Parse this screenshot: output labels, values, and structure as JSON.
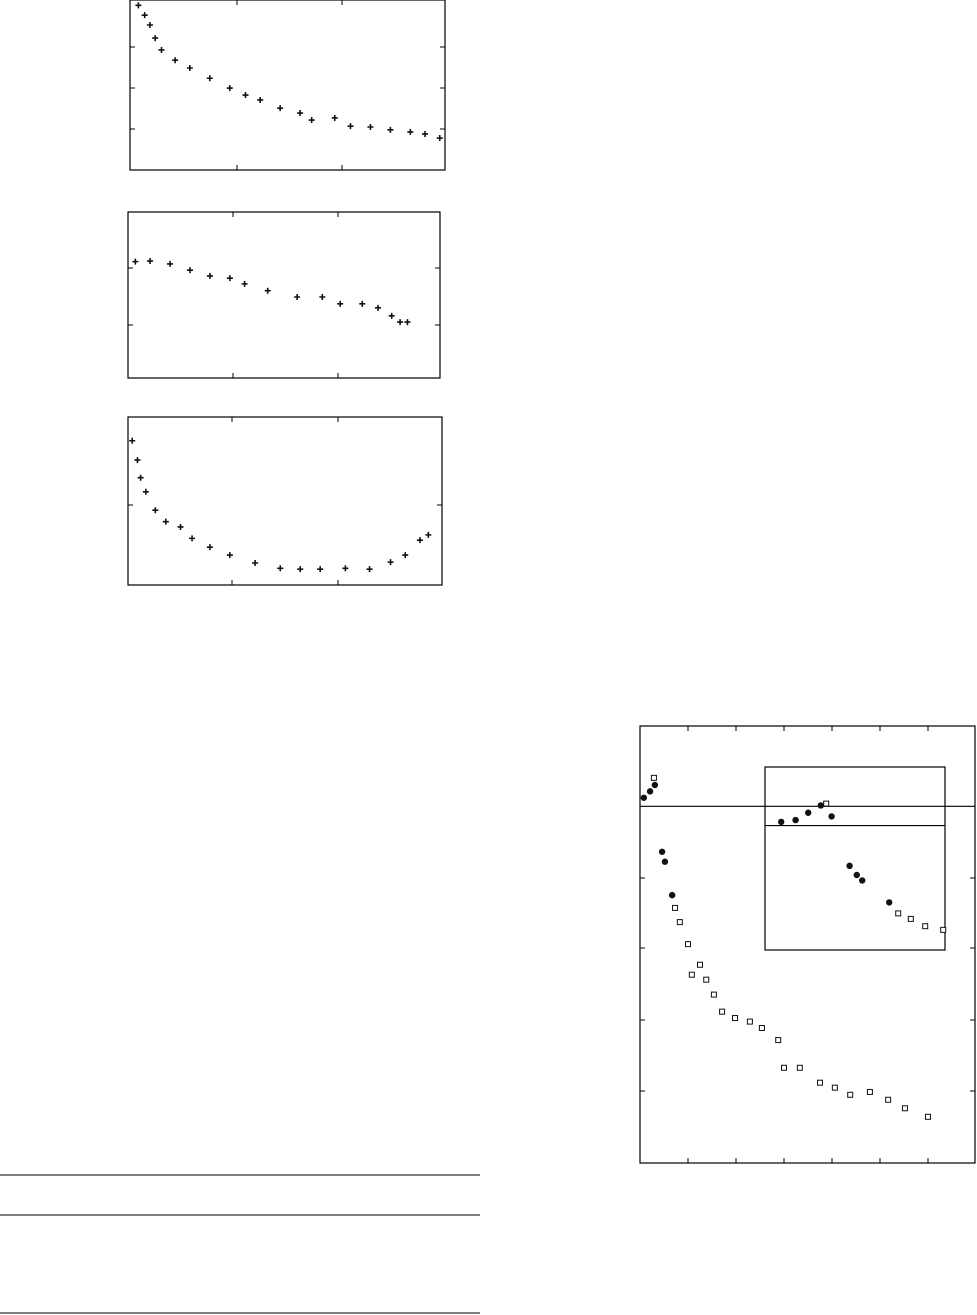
{
  "chart_data": [
    {
      "type": "scatter",
      "marker": "plus",
      "color": "#111",
      "x": [
        0.08,
        0.14,
        0.19,
        0.24,
        0.3,
        0.43,
        0.57,
        0.76,
        0.95,
        1.1,
        1.24,
        1.43,
        1.62,
        1.73,
        1.95,
        2.1,
        2.29,
        2.48,
        2.67,
        2.81,
        2.95
      ],
      "values": [
        4.02,
        3.78,
        3.54,
        3.22,
        2.93,
        2.68,
        2.49,
        2.24,
        2.0,
        1.83,
        1.71,
        1.51,
        1.39,
        1.22,
        1.27,
        1.07,
        1.05,
        0.98,
        0.93,
        0.88,
        0.78
      ],
      "xlim": [
        0,
        3
      ],
      "ylim": [
        0,
        4.15
      ]
    },
    {
      "type": "scatter",
      "marker": "plus",
      "color": "#111",
      "x": [
        0.07,
        0.21,
        0.4,
        0.59,
        0.78,
        0.97,
        1.11,
        1.33,
        1.61,
        1.85,
        2.02,
        2.23,
        2.38,
        2.51,
        2.59,
        2.66
      ],
      "values": [
        2.04,
        2.05,
        2.0,
        1.89,
        1.79,
        1.75,
        1.65,
        1.53,
        1.42,
        1.42,
        1.3,
        1.3,
        1.23,
        1.09,
        0.98,
        0.98
      ],
      "xlim": [
        0,
        2.97
      ],
      "ylim": [
        0,
        2.91
      ]
    },
    {
      "type": "scatter",
      "marker": "plus",
      "color": "#111",
      "x": [
        0.04,
        0.09,
        0.12,
        0.17,
        0.26,
        0.36,
        0.5,
        0.61,
        0.78,
        0.97,
        1.21,
        1.45,
        1.64,
        1.83,
        2.07,
        2.3,
        2.5,
        2.64,
        2.78,
        2.86
      ],
      "values": [
        1.64,
        1.42,
        1.22,
        1.06,
        0.85,
        0.72,
        0.66,
        0.53,
        0.43,
        0.34,
        0.25,
        0.19,
        0.18,
        0.18,
        0.19,
        0.18,
        0.26,
        0.34,
        0.51,
        0.57
      ],
      "xlim": [
        0,
        2.99
      ],
      "ylim": [
        0,
        1.91
      ]
    },
    {
      "type": "scatter",
      "hline": 5.02,
      "xlim": [
        0,
        6.98
      ],
      "ylim": [
        0,
        6.15
      ],
      "series": [
        {
          "marker": "circle",
          "color": "#111",
          "x": [
            0.08,
            0.21,
            0.31,
            0.46,
            0.52,
            0.67
          ],
          "values": [
            5.14,
            5.23,
            5.32,
            4.38,
            4.24,
            3.77
          ]
        },
        {
          "marker": "square",
          "color": "#111",
          "x": [
            0.29,
            0.73,
            0.83,
            1.0,
            1.08,
            1.25,
            1.38,
            1.54,
            1.71,
            1.98,
            2.29,
            2.54,
            2.88,
            3.0,
            3.33,
            3.75,
            4.06,
            4.38,
            4.79,
            5.17,
            5.52,
            6.0
          ],
          "values": [
            5.42,
            3.59,
            3.39,
            3.08,
            2.65,
            2.79,
            2.58,
            2.37,
            2.13,
            2.04,
            1.99,
            1.9,
            1.73,
            1.34,
            1.34,
            1.13,
            1.06,
            0.96,
            1.0,
            0.89,
            0.77,
            0.65
          ]
        }
      ]
    },
    {
      "type": "scatter",
      "hline": 0.68,
      "xlim": [
        0,
        1
      ],
      "ylim": [
        0,
        1
      ],
      "series": [
        {
          "marker": "circle",
          "color": "#111",
          "x": [
            0.09,
            0.17,
            0.24,
            0.31,
            0.37,
            0.47,
            0.51,
            0.54,
            0.69
          ],
          "values": [
            0.7,
            0.71,
            0.75,
            0.79,
            0.73,
            0.46,
            0.41,
            0.38,
            0.26
          ]
        },
        {
          "marker": "square",
          "color": "#111",
          "x": [
            0.34,
            0.74,
            0.81,
            0.89,
            0.99
          ],
          "values": [
            0.8,
            0.2,
            0.17,
            0.13,
            0.11
          ]
        }
      ]
    }
  ]
}
